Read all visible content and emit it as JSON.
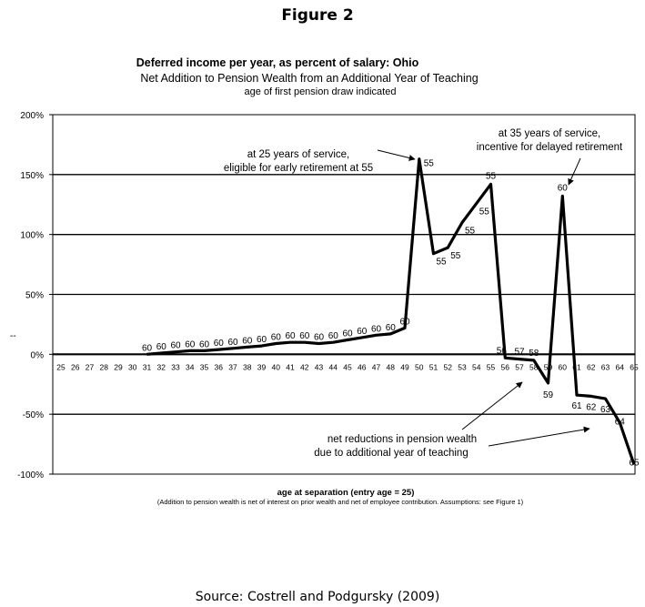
{
  "figure_label": "Figure 2",
  "source": "Source:   Costrell and Podgursky (2009)",
  "chart_data": {
    "type": "line",
    "title": "Deferred income per year, as percent of salary:  Ohio",
    "subtitle": "Net Addition to Pension Wealth from an Additional Year of Teaching",
    "subtitle2": "age of first pension draw indicated",
    "xlabel": "age at separation (entry age = 25)",
    "note": "(Addition to pension wealth is net of interest on prior wealth and net of employee contribution.  Assumptions:  see Figure 1)",
    "ylabel": "",
    "y_stray_mark": "--",
    "ylim": [
      -100,
      200
    ],
    "yticks": [
      200,
      150,
      100,
      50,
      0,
      -50,
      -100
    ],
    "ytick_labels": [
      "200%",
      "150%",
      "100%",
      "50%",
      "0%",
      "-50%",
      "-100%"
    ],
    "grid": "horizontal",
    "categories": [
      "25",
      "26",
      "27",
      "28",
      "29",
      "30",
      "31",
      "32",
      "33",
      "34",
      "35",
      "36",
      "37",
      "38",
      "39",
      "40",
      "41",
      "42",
      "43",
      "44",
      "45",
      "46",
      "47",
      "48",
      "49",
      "50",
      "51",
      "52",
      "53",
      "54",
      "55",
      "56",
      "57",
      "58",
      "59",
      "60",
      "61",
      "62",
      "63",
      "64",
      "65"
    ],
    "series": [
      {
        "values": [
          null,
          null,
          null,
          null,
          null,
          null,
          0,
          1,
          2,
          3,
          3,
          4,
          5,
          6,
          7,
          9,
          10,
          10,
          9,
          10,
          12,
          14,
          16,
          17,
          22,
          163,
          84,
          89,
          110,
          126,
          142,
          -3,
          -4,
          -5,
          -24,
          132,
          -34,
          -35,
          -37,
          -57,
          -92
        ],
        "point_labels": [
          null,
          null,
          null,
          null,
          null,
          null,
          "60",
          "60",
          "60",
          "60",
          "60",
          "60",
          "60",
          "60",
          "60",
          "60",
          "60",
          "60",
          "60",
          "60",
          "60",
          "60",
          "60",
          "60",
          "60",
          "55",
          "55",
          "55",
          "55",
          "55",
          "55",
          "56",
          "57",
          "58",
          "59",
          "60",
          "61",
          "62",
          "63",
          "64",
          "65"
        ]
      }
    ],
    "annotations": [
      {
        "lines": [
          "at 25 years of service,",
          "eligible  for early  retirement at 55"
        ]
      },
      {
        "lines": [
          "at 35 years  of service,",
          "incentive for delayed retirement"
        ]
      },
      {
        "lines": [
          "net reductions in pension wealth",
          "due to additional year of teaching"
        ]
      }
    ]
  }
}
